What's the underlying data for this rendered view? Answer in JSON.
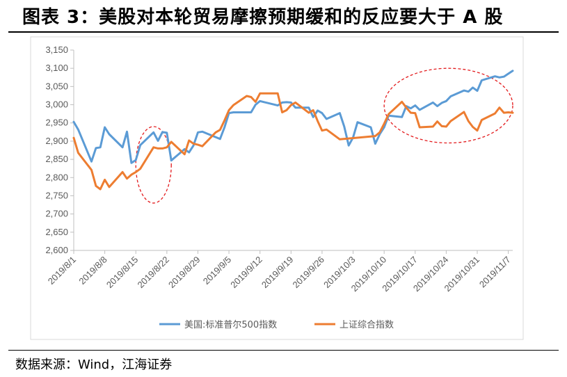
{
  "figure": {
    "title": "图表 3：美股对本轮贸易摩擦预期缓和的反应要大于 A 股",
    "source": "数据来源：Wind，江海证券"
  },
  "chart_data": {
    "type": "line",
    "title": "",
    "xlabel": "",
    "ylabel": "",
    "ylim": [
      2600,
      3150
    ],
    "y_ticks": [
      "2,600",
      "2,650",
      "2,700",
      "2,750",
      "2,800",
      "2,850",
      "2,900",
      "2,950",
      "3,000",
      "3,050",
      "3,100",
      "3,150"
    ],
    "x_ticks": [
      "2019/8/1",
      "2019/8/8",
      "2019/8/15",
      "2019/8/22",
      "2019/8/29",
      "2019/9/5",
      "2019/9/12",
      "2019/9/19",
      "2019/9/26",
      "2019/10/3",
      "2019/10/10",
      "2019/10/17",
      "2019/10/24",
      "2019/10/31",
      "2019/11/7"
    ],
    "legend_position": "bottom",
    "grid": false,
    "series": [
      {
        "name": "美国:标准普尔500指数",
        "color": "#5B9BD5",
        "points": [
          [
            "2019/8/1",
            2953
          ],
          [
            "2019/8/2",
            2932
          ],
          [
            "2019/8/5",
            2844
          ],
          [
            "2019/8/6",
            2881
          ],
          [
            "2019/8/7",
            2883
          ],
          [
            "2019/8/8",
            2938
          ],
          [
            "2019/8/9",
            2919
          ],
          [
            "2019/8/12",
            2883
          ],
          [
            "2019/8/13",
            2926
          ],
          [
            "2019/8/14",
            2840
          ],
          [
            "2019/8/15",
            2848
          ],
          [
            "2019/8/16",
            2889
          ],
          [
            "2019/8/19",
            2924
          ],
          [
            "2019/8/20",
            2901
          ],
          [
            "2019/8/21",
            2925
          ],
          [
            "2019/8/22",
            2923
          ],
          [
            "2019/8/23",
            2847
          ],
          [
            "2019/8/26",
            2878
          ],
          [
            "2019/8/27",
            2869
          ],
          [
            "2019/8/28",
            2888
          ],
          [
            "2019/8/29",
            2924
          ],
          [
            "2019/8/30",
            2926
          ],
          [
            "2019/9/3",
            2906
          ],
          [
            "2019/9/4",
            2938
          ],
          [
            "2019/9/5",
            2977
          ],
          [
            "2019/9/6",
            2979
          ],
          [
            "2019/9/9",
            2979
          ],
          [
            "2019/9/10",
            2979
          ],
          [
            "2019/9/11",
            3000
          ],
          [
            "2019/9/12",
            3010
          ],
          [
            "2019/9/13",
            3007
          ],
          [
            "2019/9/16",
            2998
          ],
          [
            "2019/9/17",
            3006
          ],
          [
            "2019/9/18",
            3007
          ],
          [
            "2019/9/19",
            3006
          ],
          [
            "2019/9/20",
            2992
          ],
          [
            "2019/9/23",
            2992
          ],
          [
            "2019/9/24",
            2966
          ],
          [
            "2019/9/25",
            2984
          ],
          [
            "2019/9/26",
            2977
          ],
          [
            "2019/9/27",
            2961
          ],
          [
            "2019/9/30",
            2977
          ],
          [
            "2019/10/1",
            2940
          ],
          [
            "2019/10/2",
            2888
          ],
          [
            "2019/10/3",
            2910
          ],
          [
            "2019/10/4",
            2952
          ],
          [
            "2019/10/7",
            2938
          ],
          [
            "2019/10/8",
            2893
          ],
          [
            "2019/10/9",
            2919
          ],
          [
            "2019/10/10",
            2938
          ],
          [
            "2019/10/11",
            2970
          ],
          [
            "2019/10/14",
            2966
          ],
          [
            "2019/10/15",
            2996
          ],
          [
            "2019/10/16",
            2990
          ],
          [
            "2019/10/17",
            2998
          ],
          [
            "2019/10/18",
            2986
          ],
          [
            "2019/10/21",
            3006
          ],
          [
            "2019/10/22",
            2996
          ],
          [
            "2019/10/23",
            3005
          ],
          [
            "2019/10/24",
            3010
          ],
          [
            "2019/10/25",
            3023
          ],
          [
            "2019/10/28",
            3039
          ],
          [
            "2019/10/29",
            3036
          ],
          [
            "2019/10/30",
            3047
          ],
          [
            "2019/10/31",
            3038
          ],
          [
            "2019/11/1",
            3067
          ],
          [
            "2019/11/4",
            3078
          ],
          [
            "2019/11/5",
            3075
          ],
          [
            "2019/11/6",
            3077
          ],
          [
            "2019/11/7",
            3085
          ],
          [
            "2019/11/8",
            3093
          ]
        ]
      },
      {
        "name": "上证综合指数",
        "color": "#ED7D31",
        "points": [
          [
            "2019/8/1",
            2909
          ],
          [
            "2019/8/2",
            2868
          ],
          [
            "2019/8/5",
            2821
          ],
          [
            "2019/8/6",
            2777
          ],
          [
            "2019/8/7",
            2768
          ],
          [
            "2019/8/8",
            2794
          ],
          [
            "2019/8/9",
            2774
          ],
          [
            "2019/8/12",
            2815
          ],
          [
            "2019/8/13",
            2797
          ],
          [
            "2019/8/14",
            2808
          ],
          [
            "2019/8/15",
            2815
          ],
          [
            "2019/8/16",
            2824
          ],
          [
            "2019/8/19",
            2883
          ],
          [
            "2019/8/20",
            2880
          ],
          [
            "2019/8/21",
            2880
          ],
          [
            "2019/8/22",
            2883
          ],
          [
            "2019/8/23",
            2898
          ],
          [
            "2019/8/26",
            2864
          ],
          [
            "2019/8/27",
            2902
          ],
          [
            "2019/8/28",
            2893
          ],
          [
            "2019/8/29",
            2890
          ],
          [
            "2019/8/30",
            2886
          ],
          [
            "2019/9/2",
            2924
          ],
          [
            "2019/9/3",
            2931
          ],
          [
            "2019/9/4",
            2957
          ],
          [
            "2019/9/5",
            2985
          ],
          [
            "2019/9/6",
            2999
          ],
          [
            "2019/9/9",
            3024
          ],
          [
            "2019/9/10",
            3021
          ],
          [
            "2019/9/11",
            3008
          ],
          [
            "2019/9/12",
            3031
          ],
          [
            "2019/9/16",
            3031
          ],
          [
            "2019/9/17",
            2979
          ],
          [
            "2019/9/18",
            2985
          ],
          [
            "2019/9/19",
            2999
          ],
          [
            "2019/9/20",
            3006
          ],
          [
            "2019/9/23",
            2978
          ],
          [
            "2019/9/24",
            2985
          ],
          [
            "2019/9/25",
            2955
          ],
          [
            "2019/9/26",
            2929
          ],
          [
            "2019/9/27",
            2932
          ],
          [
            "2019/9/30",
            2905
          ],
          [
            "2019/10/8",
            2914
          ],
          [
            "2019/10/9",
            2924
          ],
          [
            "2019/10/10",
            2948
          ],
          [
            "2019/10/11",
            2974
          ],
          [
            "2019/10/14",
            3008
          ],
          [
            "2019/10/15",
            2992
          ],
          [
            "2019/10/16",
            2978
          ],
          [
            "2019/10/17",
            2977
          ],
          [
            "2019/10/18",
            2938
          ],
          [
            "2019/10/21",
            2940
          ],
          [
            "2019/10/22",
            2954
          ],
          [
            "2019/10/23",
            2941
          ],
          [
            "2019/10/24",
            2940
          ],
          [
            "2019/10/25",
            2955
          ],
          [
            "2019/10/28",
            2980
          ],
          [
            "2019/10/29",
            2955
          ],
          [
            "2019/10/30",
            2939
          ],
          [
            "2019/10/31",
            2929
          ],
          [
            "2019/11/1",
            2958
          ],
          [
            "2019/11/4",
            2976
          ],
          [
            "2019/11/5",
            2992
          ],
          [
            "2019/11/6",
            2978
          ],
          [
            "2019/11/7",
            2979
          ],
          [
            "2019/11/8",
            2978
          ]
        ]
      }
    ],
    "annotations": [
      {
        "shape": "dashed-ellipse",
        "color": "#E31A1C",
        "x_range": [
          "2019/8/15",
          "2019/8/23"
        ],
        "y_range": [
          2730,
          2940
        ]
      },
      {
        "shape": "dashed-ellipse",
        "color": "#E31A1C",
        "x_range": [
          "2019/10/10",
          "2019/11/8"
        ],
        "y_range": [
          2895,
          3100
        ]
      }
    ]
  }
}
